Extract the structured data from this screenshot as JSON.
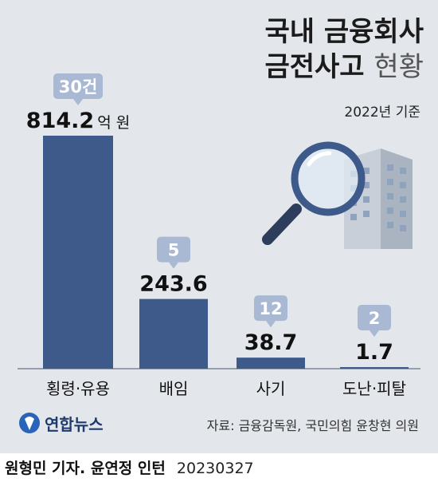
{
  "title": {
    "line1": "국내 금융회사",
    "line2_bold": "금전사고",
    "line2_light": "현황"
  },
  "basis": "2022년 기준",
  "chart_data": {
    "type": "bar",
    "categories": [
      "횡령·유용",
      "배임",
      "사기",
      "도난·피탈"
    ],
    "values": [
      814.2,
      243.6,
      38.7,
      1.7
    ],
    "value_labels": [
      "814.2",
      "243.6",
      "38.7",
      "1.7"
    ],
    "value_unit": "억 원",
    "counts": [
      "30건",
      "5",
      "12",
      "2"
    ],
    "bar_color": "#3d5a8a",
    "badge_color": "#a9b8d3"
  },
  "source": "자료: 금융감독원, 국민의힘 윤창현 의원",
  "logo": "연합뉴스",
  "credit": {
    "name": "원형민 기자. 윤연정 인턴",
    "date": "20230327"
  }
}
